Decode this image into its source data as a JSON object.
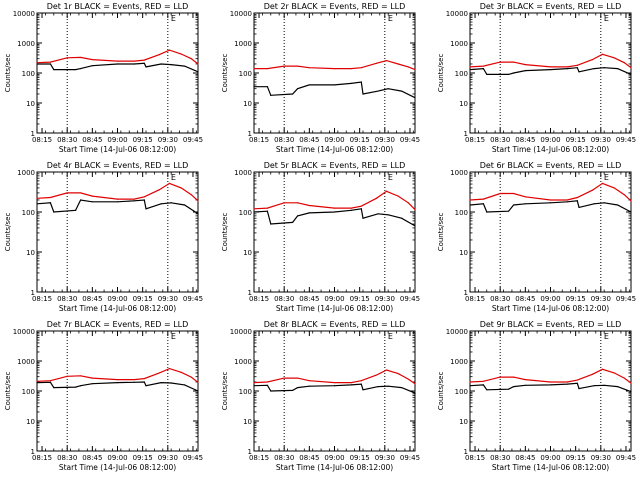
{
  "chart_data": [
    {
      "type": "line",
      "title": "Det 1r BLACK = Events, RED = LLD",
      "xlabel": "Start Time (14-Jul-06 08:12:00)",
      "ylabel": "Counts/sec",
      "yscale": "log",
      "ylim": [
        1,
        10000
      ],
      "x_ticks": [
        "08:15",
        "08:30",
        "08:45",
        "09:00",
        "09:15",
        "09:30",
        "09:45"
      ],
      "y_ticks": [
        "1",
        "10",
        "100",
        "1000",
        "10000"
      ],
      "marker": "E",
      "grid": false,
      "series": [
        {
          "name": "BLACK = Events",
          "color": "#000000",
          "values": [
            200,
            200,
            130,
            130,
            140,
            175,
            200,
            200,
            210,
            160,
            200,
            190,
            170,
            110
          ],
          "x": [
            "08:12",
            "08:20",
            "08:22",
            "08:35",
            "08:38",
            "08:45",
            "09:00",
            "09:10",
            "09:16",
            "09:17",
            "09:26",
            "09:32",
            "09:40",
            "09:48"
          ]
        },
        {
          "name": "RED = LLD",
          "color": "#e00000",
          "values": [
            220,
            230,
            320,
            330,
            280,
            250,
            250,
            270,
            410,
            580,
            430,
            300,
            200
          ],
          "x": [
            "08:12",
            "08:20",
            "08:30",
            "08:38",
            "08:45",
            "09:00",
            "09:10",
            "09:16",
            "09:25",
            "09:31",
            "09:38",
            "09:44",
            "09:48"
          ]
        }
      ]
    },
    {
      "type": "line",
      "title": "Det 2r BLACK = Events, RED = LLD",
      "xlabel": "Start Time (14-Jul-06 08:12:00)",
      "ylabel": "Counts/sec",
      "yscale": "log",
      "ylim": [
        1,
        10000
      ],
      "x_ticks": [
        "08:15",
        "08:30",
        "08:45",
        "09:00",
        "09:15",
        "09:30",
        "09:45"
      ],
      "y_ticks": [
        "1",
        "10",
        "100",
        "1000",
        "10000"
      ],
      "marker": "E",
      "grid": false,
      "series": [
        {
          "name": "BLACK = Events",
          "color": "#000000",
          "values": [
            35,
            35,
            18,
            20,
            30,
            40,
            40,
            45,
            50,
            20,
            25,
            30,
            25,
            15
          ],
          "x": [
            "08:12",
            "08:20",
            "08:22",
            "08:35",
            "08:38",
            "08:45",
            "09:00",
            "09:10",
            "09:16",
            "09:17",
            "09:26",
            "09:32",
            "09:40",
            "09:48"
          ]
        },
        {
          "name": "RED = LLD",
          "color": "#e00000",
          "values": [
            140,
            140,
            170,
            170,
            150,
            140,
            140,
            150,
            210,
            260,
            200,
            160,
            130
          ],
          "x": [
            "08:12",
            "08:20",
            "08:30",
            "08:38",
            "08:45",
            "09:00",
            "09:10",
            "09:16",
            "09:25",
            "09:31",
            "09:38",
            "09:44",
            "09:48"
          ]
        }
      ]
    },
    {
      "type": "line",
      "title": "Det 3r BLACK = Events, RED = LLD",
      "xlabel": "Start Time (14-Jul-06 08:12:00)",
      "ylabel": "Counts/sec",
      "yscale": "log",
      "ylim": [
        1,
        10000
      ],
      "x_ticks": [
        "08:15",
        "08:30",
        "08:45",
        "09:00",
        "09:15",
        "09:30",
        "09:45"
      ],
      "y_ticks": [
        "1",
        "10",
        "100",
        "1000",
        "10000"
      ],
      "marker": "E",
      "grid": false,
      "series": [
        {
          "name": "BLACK = Events",
          "color": "#000000",
          "values": [
            130,
            140,
            90,
            90,
            100,
            120,
            130,
            140,
            150,
            110,
            140,
            150,
            140,
            90
          ],
          "x": [
            "08:12",
            "08:20",
            "08:22",
            "08:35",
            "08:38",
            "08:45",
            "09:00",
            "09:10",
            "09:16",
            "09:17",
            "09:26",
            "09:32",
            "09:40",
            "09:48"
          ]
        },
        {
          "name": "RED = LLD",
          "color": "#e00000",
          "values": [
            160,
            170,
            230,
            230,
            190,
            160,
            160,
            180,
            280,
            420,
            320,
            220,
            150
          ],
          "x": [
            "08:12",
            "08:20",
            "08:30",
            "08:38",
            "08:45",
            "09:00",
            "09:10",
            "09:16",
            "09:25",
            "09:31",
            "09:38",
            "09:44",
            "09:48"
          ]
        }
      ]
    },
    {
      "type": "line",
      "title": "Det 4r BLACK = Events, RED = LLD",
      "xlabel": "Start Time (14-Jul-06 08:12:00)",
      "ylabel": "Counts/sec",
      "yscale": "log",
      "ylim": [
        1,
        1000
      ],
      "x_ticks": [
        "08:15",
        "08:30",
        "08:45",
        "09:00",
        "09:15",
        "09:30",
        "09:45"
      ],
      "y_ticks": [
        "1",
        "10",
        "100",
        "1000"
      ],
      "marker": "E",
      "grid": false,
      "series": [
        {
          "name": "BLACK = Events",
          "color": "#000000",
          "values": [
            160,
            170,
            100,
            110,
            200,
            180,
            180,
            190,
            200,
            120,
            160,
            170,
            150,
            90
          ],
          "x": [
            "08:12",
            "08:20",
            "08:22",
            "08:35",
            "08:38",
            "08:45",
            "09:00",
            "09:10",
            "09:16",
            "09:17",
            "09:26",
            "09:32",
            "09:40",
            "09:48"
          ]
        },
        {
          "name": "RED = LLD",
          "color": "#e00000",
          "values": [
            220,
            230,
            300,
            300,
            250,
            210,
            210,
            240,
            360,
            520,
            400,
            270,
            190
          ],
          "x": [
            "08:12",
            "08:20",
            "08:30",
            "08:38",
            "08:45",
            "09:00",
            "09:10",
            "09:16",
            "09:25",
            "09:31",
            "09:38",
            "09:44",
            "09:48"
          ]
        }
      ]
    },
    {
      "type": "line",
      "title": "Det 5r BLACK = Events, RED = LLD",
      "xlabel": "Start Time (14-Jul-06 08:12:00)",
      "ylabel": "Counts/sec",
      "yscale": "log",
      "ylim": [
        1,
        1000
      ],
      "x_ticks": [
        "08:15",
        "08:30",
        "08:45",
        "09:00",
        "09:15",
        "09:30",
        "09:45"
      ],
      "y_ticks": [
        "1",
        "10",
        "100",
        "1000"
      ],
      "marker": "E",
      "grid": false,
      "series": [
        {
          "name": "BLACK = Events",
          "color": "#000000",
          "values": [
            100,
            105,
            50,
            55,
            80,
            95,
            100,
            110,
            120,
            70,
            90,
            85,
            70,
            45
          ],
          "x": [
            "08:12",
            "08:20",
            "08:22",
            "08:35",
            "08:38",
            "08:45",
            "09:00",
            "09:10",
            "09:16",
            "09:17",
            "09:26",
            "09:32",
            "09:40",
            "09:48"
          ]
        },
        {
          "name": "RED = LLD",
          "color": "#e00000",
          "values": [
            120,
            125,
            170,
            170,
            145,
            125,
            125,
            140,
            220,
            330,
            250,
            170,
            115
          ],
          "x": [
            "08:12",
            "08:20",
            "08:30",
            "08:38",
            "08:45",
            "09:00",
            "09:10",
            "09:16",
            "09:25",
            "09:31",
            "09:38",
            "09:44",
            "09:48"
          ]
        }
      ]
    },
    {
      "type": "line",
      "title": "Det 6r BLACK = Events, RED = LLD",
      "xlabel": "Start Time (14-Jul-06 08:12:00)",
      "ylabel": "Counts/sec",
      "yscale": "log",
      "ylim": [
        1,
        1000
      ],
      "x_ticks": [
        "08:15",
        "08:30",
        "08:45",
        "09:00",
        "09:15",
        "09:30",
        "09:45"
      ],
      "y_ticks": [
        "1",
        "10",
        "100",
        "1000"
      ],
      "marker": "E",
      "grid": false,
      "series": [
        {
          "name": "BLACK = Events",
          "color": "#000000",
          "values": [
            150,
            160,
            100,
            105,
            150,
            160,
            170,
            180,
            190,
            130,
            160,
            170,
            150,
            100
          ],
          "x": [
            "08:12",
            "08:20",
            "08:22",
            "08:35",
            "08:38",
            "08:45",
            "09:00",
            "09:10",
            "09:16",
            "09:17",
            "09:26",
            "09:32",
            "09:40",
            "09:48"
          ]
        },
        {
          "name": "RED = LLD",
          "color": "#e00000",
          "values": [
            200,
            210,
            290,
            290,
            240,
            200,
            200,
            230,
            350,
            520,
            400,
            270,
            190
          ],
          "x": [
            "08:12",
            "08:20",
            "08:30",
            "08:38",
            "08:45",
            "09:00",
            "09:10",
            "09:16",
            "09:25",
            "09:31",
            "09:38",
            "09:44",
            "09:48"
          ]
        }
      ]
    },
    {
      "type": "line",
      "title": "Det 7r BLACK = Events, RED = LLD",
      "xlabel": "Start Time (14-Jul-06 08:12:00)",
      "ylabel": "Counts/sec",
      "yscale": "log",
      "ylim": [
        1,
        10000
      ],
      "x_ticks": [
        "08:15",
        "08:30",
        "08:45",
        "09:00",
        "09:15",
        "09:30",
        "09:45"
      ],
      "y_ticks": [
        "1",
        "10",
        "100",
        "1000",
        "10000"
      ],
      "marker": "E",
      "grid": false,
      "series": [
        {
          "name": "BLACK = Events",
          "color": "#000000",
          "values": [
            190,
            195,
            130,
            135,
            150,
            175,
            190,
            195,
            200,
            150,
            190,
            185,
            160,
            100
          ],
          "x": [
            "08:12",
            "08:20",
            "08:22",
            "08:35",
            "08:38",
            "08:45",
            "09:00",
            "09:10",
            "09:16",
            "09:17",
            "09:26",
            "09:32",
            "09:40",
            "09:48"
          ]
        },
        {
          "name": "RED = LLD",
          "color": "#e00000",
          "values": [
            210,
            220,
            310,
            320,
            270,
            240,
            240,
            260,
            400,
            560,
            420,
            290,
            195
          ],
          "x": [
            "08:12",
            "08:20",
            "08:30",
            "08:38",
            "08:45",
            "09:00",
            "09:10",
            "09:16",
            "09:25",
            "09:31",
            "09:38",
            "09:44",
            "09:48"
          ]
        }
      ]
    },
    {
      "type": "line",
      "title": "Det 8r BLACK = Events, RED = LLD",
      "xlabel": "Start Time (14-Jul-06 08:12:00)",
      "ylabel": "Counts/sec",
      "yscale": "log",
      "ylim": [
        1,
        10000
      ],
      "x_ticks": [
        "08:15",
        "08:30",
        "08:45",
        "09:00",
        "09:15",
        "09:30",
        "09:45"
      ],
      "y_ticks": [
        "1",
        "10",
        "100",
        "1000",
        "10000"
      ],
      "marker": "E",
      "grid": false,
      "series": [
        {
          "name": "BLACK = Events",
          "color": "#000000",
          "values": [
            150,
            155,
            100,
            105,
            130,
            145,
            150,
            160,
            170,
            110,
            140,
            145,
            130,
            85
          ],
          "x": [
            "08:12",
            "08:20",
            "08:22",
            "08:35",
            "08:38",
            "08:45",
            "09:00",
            "09:10",
            "09:16",
            "09:17",
            "09:26",
            "09:32",
            "09:40",
            "09:48"
          ]
        },
        {
          "name": "RED = LLD",
          "color": "#e00000",
          "values": [
            190,
            200,
            270,
            270,
            220,
            190,
            190,
            220,
            340,
            500,
            380,
            250,
            175
          ],
          "x": [
            "08:12",
            "08:20",
            "08:30",
            "08:38",
            "08:45",
            "09:00",
            "09:10",
            "09:16",
            "09:25",
            "09:31",
            "09:38",
            "09:44",
            "09:48"
          ]
        }
      ]
    },
    {
      "type": "line",
      "title": "Det 9r BLACK = Events, RED = LLD",
      "xlabel": "Start Time (14-Jul-06 08:12:00)",
      "ylabel": "Counts/sec",
      "yscale": "log",
      "ylim": [
        1,
        10000
      ],
      "x_ticks": [
        "08:15",
        "08:30",
        "08:45",
        "09:00",
        "09:15",
        "09:30",
        "09:45"
      ],
      "y_ticks": [
        "1",
        "10",
        "100",
        "1000",
        "10000"
      ],
      "marker": "E",
      "grid": false,
      "series": [
        {
          "name": "BLACK = Events",
          "color": "#000000",
          "values": [
            150,
            160,
            110,
            115,
            140,
            155,
            160,
            170,
            180,
            120,
            150,
            155,
            140,
            95
          ],
          "x": [
            "08:12",
            "08:20",
            "08:22",
            "08:35",
            "08:38",
            "08:45",
            "09:00",
            "09:10",
            "09:16",
            "09:17",
            "09:26",
            "09:32",
            "09:40",
            "09:48"
          ]
        },
        {
          "name": "RED = LLD",
          "color": "#e00000",
          "values": [
            200,
            210,
            290,
            290,
            240,
            200,
            200,
            230,
            360,
            530,
            400,
            270,
            185
          ],
          "x": [
            "08:12",
            "08:20",
            "08:30",
            "08:38",
            "08:45",
            "09:00",
            "09:10",
            "09:16",
            "09:25",
            "09:31",
            "09:38",
            "09:44",
            "09:48"
          ]
        }
      ]
    }
  ]
}
